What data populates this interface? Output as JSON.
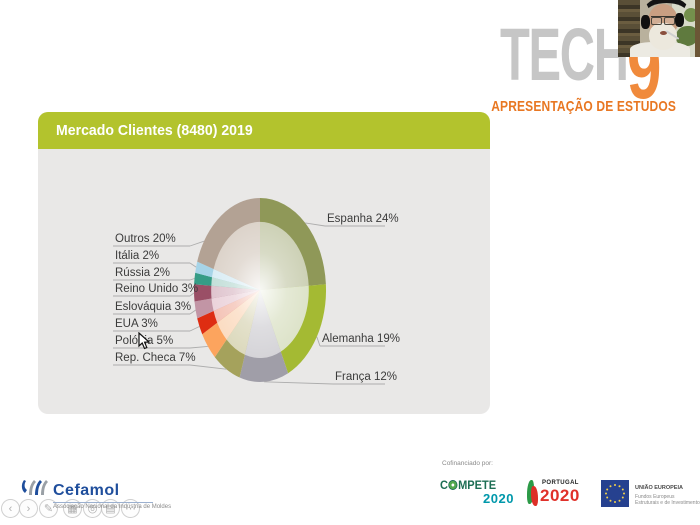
{
  "branding": {
    "logo_text": "TECH",
    "logo_digit": "9",
    "subtitle": "APRESENTAÇÃO DE ESTUDOS",
    "accent_orange": "#E87722",
    "logo_gray": "#C6C6C6"
  },
  "slide": {
    "title": "Mercado Clientes (8480) 2019",
    "header_color": "#B3C32D",
    "card_color": "#E9E8E7"
  },
  "chart_data": {
    "type": "pie",
    "title": "Mercado Clientes (8480) 2019",
    "unit": "%",
    "direction": "clockwise",
    "start_angle_deg": 0,
    "legend": "none",
    "labels": [
      "Espanha",
      "Alemanha",
      "França",
      "Rep. Checa",
      "Polónia",
      "EUA",
      "Eslováquia",
      "Reino Unido",
      "Rússia",
      "Itália",
      "Outros"
    ],
    "values": [
      24,
      19,
      12,
      7,
      5,
      3,
      3,
      3,
      2,
      2,
      20
    ],
    "colors_outer": [
      "#8F9858",
      "#A4BA33",
      "#A09EA8",
      "#A5A25C",
      "#FCA45E",
      "#DE2D12",
      "#C295A5",
      "#9A4F66",
      "#359C86",
      "#A6D4E8",
      "#B3A294"
    ],
    "colors_inner": [
      "#CDD1B6",
      "#DDE3C9",
      "#D5D4D8",
      "#DCD9BD",
      "#FBDCC2",
      "#F4C3B6",
      "#EBD3DB",
      "#DFC4CE",
      "#C3DFD9",
      "#DAEDF5",
      "#DCD3CA"
    ],
    "label_text_color": "#3B3B3B",
    "leader_line_color": "#ADADAD"
  },
  "toolbar": {
    "buttons": [
      {
        "name": "previous-slide-button",
        "glyph": "‹"
      },
      {
        "name": "next-slide-button",
        "glyph": "›"
      },
      {
        "name": "pen-tool-button",
        "glyph": "✎"
      },
      {
        "name": "all-slides-button",
        "glyph": "▦"
      },
      {
        "name": "zoom-tool-button",
        "glyph": "◎"
      },
      {
        "name": "captions-button",
        "glyph": "▤"
      },
      {
        "name": "more-options-button",
        "glyph": "⋯"
      }
    ]
  },
  "cefamol": {
    "name": "Cefamol",
    "subtitle": "Associação Nacional da Indústria de Moldes"
  },
  "footer": {
    "cofinanced_label": "Cofinanciado por:",
    "compete": {
      "prefix": "C",
      "suffix": "MPETE",
      "year": "2020"
    },
    "portugal": {
      "word": "PORTUGAL",
      "year": "2020"
    },
    "eu": {
      "line1": "UNIÃO EUROPEIA",
      "line2": "Fundos Europeus",
      "line3": "Estruturais e de Investimento"
    }
  }
}
